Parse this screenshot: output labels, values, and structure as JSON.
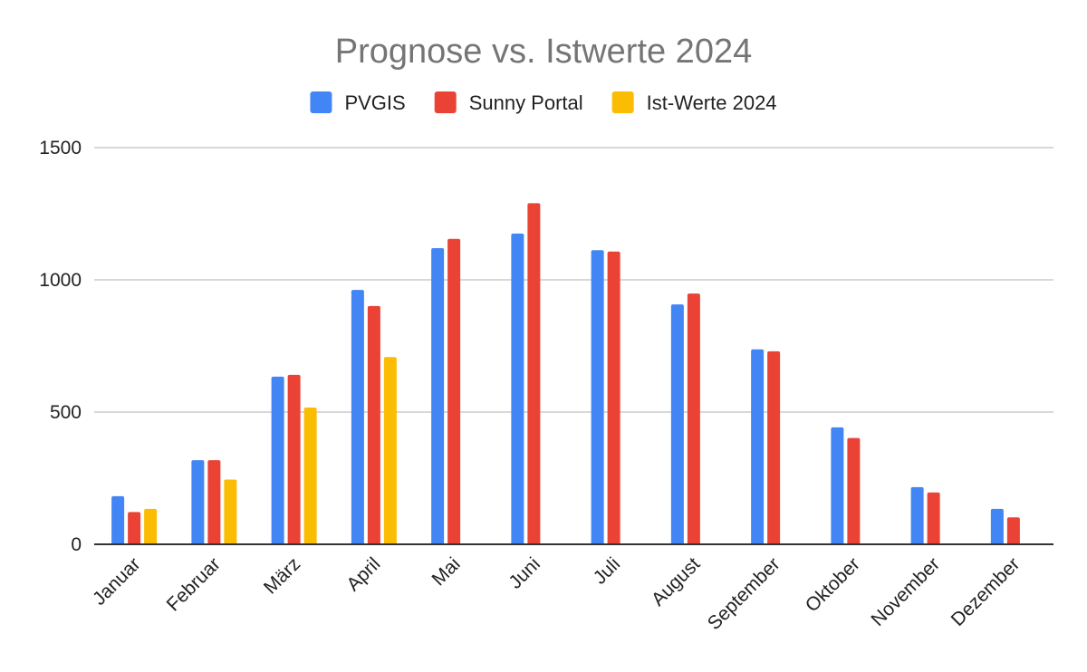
{
  "chart_data": {
    "type": "bar",
    "title": "Prognose vs. Istwerte 2024",
    "xlabel": "",
    "ylabel": "",
    "ylim": [
      0,
      1500
    ],
    "yticks": [
      0,
      500,
      1000,
      1500
    ],
    "grid": true,
    "legend_position": "top",
    "categories": [
      "Januar",
      "Februar",
      "März",
      "April",
      "Mai",
      "Juni",
      "Juli",
      "August",
      "September",
      "Oktober",
      "November",
      "Dezember"
    ],
    "series": [
      {
        "name": "PVGIS",
        "color": "#4285f4",
        "values": [
          182,
          318,
          634,
          962,
          1120,
          1175,
          1112,
          907,
          737,
          442,
          216,
          134
        ]
      },
      {
        "name": "Sunny Portal",
        "color": "#ea4335",
        "values": [
          122,
          318,
          641,
          901,
          1155,
          1290,
          1107,
          948,
          730,
          402,
          196,
          102
        ]
      },
      {
        "name": "Ist-Werte 2024",
        "color": "#fbbc04",
        "values": [
          134,
          245,
          517,
          708,
          null,
          null,
          null,
          null,
          null,
          null,
          null,
          null
        ]
      }
    ]
  }
}
